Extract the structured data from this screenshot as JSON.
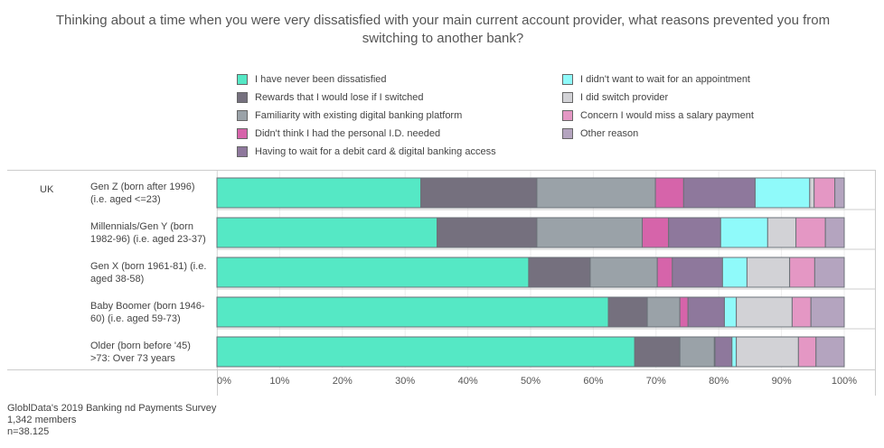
{
  "chart_data": {
    "type": "bar",
    "orientation": "horizontal-stacked-100",
    "title": "Thinking about a time when you were very dissatisfied with your main current account provider, what reasons prevented you from switching to another bank?",
    "group": "UK",
    "categories": [
      "Gen Z (born after 1996) (i.e. aged <=23)",
      "Millennials/Gen Y (born 1982-96) (i.e. aged 23-37)",
      "Gen X (born 1961-81) (i.e. aged 38-58)",
      "Baby Boomer (born 1946-60) (i.e. aged 59-73)",
      "Older (born before '45) >73: Over 73 years"
    ],
    "series": [
      {
        "name": "I have never been dissatisfied",
        "color": "#55e8c5",
        "values": [
          32.5,
          35.1,
          49.7,
          62.4,
          66.6
        ]
      },
      {
        "name": "Rewards that I would lose if I switched",
        "color": "#75707e",
        "values": [
          18.5,
          15.9,
          9.8,
          6.2,
          7.2
        ]
      },
      {
        "name": "Familiarity with existing digital banking platform",
        "color": "#9aa2a8",
        "values": [
          18.9,
          16.8,
          10.7,
          5.2,
          5.5
        ]
      },
      {
        "name": "Didn't think I had the personal I.D. needed",
        "color": "#d664aa",
        "values": [
          4.5,
          4.2,
          2.4,
          1.3,
          0.1
        ]
      },
      {
        "name": "Having to wait for a debit card & digital banking access",
        "color": "#8e789c",
        "values": [
          11.4,
          8.3,
          8.0,
          5.8,
          2.7
        ]
      },
      {
        "name": "I didn't want to wait for an appointment",
        "color": "#8ffafa",
        "values": [
          8.7,
          7.5,
          3.9,
          1.9,
          0.7
        ]
      },
      {
        "name": "I did switch provider",
        "color": "#d2d2d6",
        "values": [
          0.7,
          4.5,
          6.8,
          8.9,
          9.9
        ]
      },
      {
        "name": "Concern I would miss a salary payment",
        "color": "#e497c4",
        "values": [
          3.3,
          4.7,
          4.0,
          3.0,
          2.8
        ]
      },
      {
        "name": "Other reason",
        "color": "#b4a4bf",
        "values": [
          1.5,
          3.0,
          4.7,
          5.3,
          4.5
        ]
      }
    ],
    "xticks": [
      "0%",
      "10%",
      "20%",
      "30%",
      "40%",
      "50%",
      "60%",
      "70%",
      "80%",
      "90%",
      "100%"
    ],
    "xlim": [
      0,
      100
    ],
    "legend": "top"
  },
  "footer": [
    "GloblData's 2019 Banking nd Payments Survey",
    "1,342 members",
    "n=38.125"
  ]
}
